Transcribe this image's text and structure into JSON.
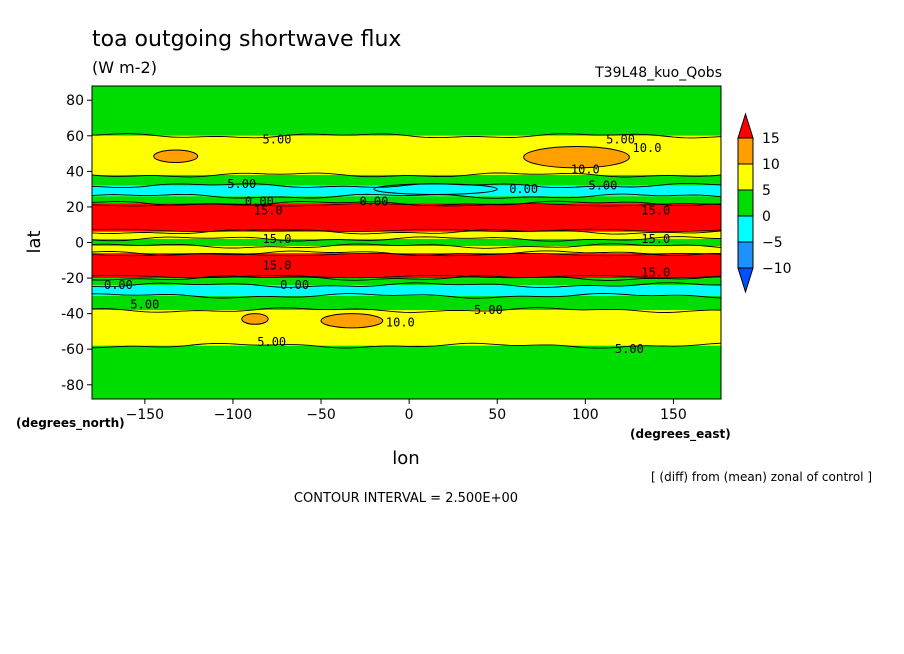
{
  "chart_data": {
    "type": "heatmap",
    "title": "toa outgoing shortwave flux",
    "units": "(W m-2)",
    "experiment": "T39L48_kuo_Qobs",
    "xlabel": "lon",
    "ylabel": "lat",
    "xunit": "(degrees_east)",
    "yunit": "(degrees_north)",
    "xlim": [
      -180,
      177
    ],
    "ylim": [
      -88,
      88
    ],
    "xticks": [
      -150,
      -100,
      -50,
      0,
      50,
      100,
      150
    ],
    "yticks": [
      -80,
      -60,
      -40,
      -20,
      0,
      20,
      40,
      60,
      80
    ],
    "note": "[ (diff) from (mean) zonal of control ]",
    "contour_interval": "CONTOUR INTERVAL = 2.500E+00",
    "colorbar": {
      "levels": [
        15,
        10,
        5,
        0,
        -5,
        -10
      ],
      "colors": [
        "#ff0000",
        "#ffa000",
        "#ffff00",
        "#00dd00",
        "#00ffff",
        "#1e90ff",
        "#0050ff"
      ]
    },
    "bands": [
      {
        "lat": [
          60,
          88
        ],
        "value": 2.5
      },
      {
        "lat": [
          38,
          60
        ],
        "value": 7.5
      },
      {
        "lat": [
          32,
          38
        ],
        "value": 2.5
      },
      {
        "lat": [
          26,
          32
        ],
        "value": -2.5
      },
      {
        "lat": [
          22,
          26
        ],
        "value": 2.5
      },
      {
        "lat": [
          6,
          22
        ],
        "value": 17.5
      },
      {
        "lat": [
          2,
          6
        ],
        "value": 7.5
      },
      {
        "lat": [
          -2,
          2
        ],
        "value": 2.5
      },
      {
        "lat": [
          -6,
          -2
        ],
        "value": 7.5
      },
      {
        "lat": [
          -20,
          -6
        ],
        "value": 17.5
      },
      {
        "lat": [
          -24,
          -20
        ],
        "value": 2.5
      },
      {
        "lat": [
          -30,
          -24
        ],
        "value": -2.5
      },
      {
        "lat": [
          -38,
          -30
        ],
        "value": 2.5
      },
      {
        "lat": [
          -58,
          -38
        ],
        "value": 7.5
      },
      {
        "lat": [
          -88,
          -58
        ],
        "value": 2.5
      }
    ],
    "patches": [
      {
        "lon": [
          65,
          125
        ],
        "lat": [
          42,
          54
        ],
        "value": 12.5
      },
      {
        "lon": [
          -145,
          -120
        ],
        "lat": [
          45,
          52
        ],
        "value": 12.5
      },
      {
        "lon": [
          -50,
          -15
        ],
        "lat": [
          -48,
          -40
        ],
        "value": 12.5
      },
      {
        "lon": [
          -95,
          -80
        ],
        "lat": [
          -46,
          -40
        ],
        "value": 12.5
      },
      {
        "lon": [
          -20,
          50
        ],
        "lat": [
          27,
          33
        ],
        "value": -2.5
      }
    ],
    "contour_labels": [
      {
        "text": "5.00",
        "lon": -75,
        "lat": 58
      },
      {
        "text": "5.00",
        "lon": 120,
        "lat": 58
      },
      {
        "text": "10.0",
        "lon": 135,
        "lat": 53
      },
      {
        "text": "10.0",
        "lon": 100,
        "lat": 41
      },
      {
        "text": "5.00",
        "lon": 110,
        "lat": 32
      },
      {
        "text": "5.00",
        "lon": -95,
        "lat": 33
      },
      {
        "text": "0.00",
        "lon": 65,
        "lat": 30
      },
      {
        "text": "0.00",
        "lon": -20,
        "lat": 23
      },
      {
        "text": "0.00",
        "lon": -85,
        "lat": 23
      },
      {
        "text": "15.0",
        "lon": -80,
        "lat": 18
      },
      {
        "text": "15.0",
        "lon": 140,
        "lat": 18
      },
      {
        "text": "15.0",
        "lon": -75,
        "lat": 2
      },
      {
        "text": "15.0",
        "lon": 140,
        "lat": 2
      },
      {
        "text": "15.0",
        "lon": -75,
        "lat": -13
      },
      {
        "text": "15.0",
        "lon": 140,
        "lat": -17
      },
      {
        "text": "0.00",
        "lon": -165,
        "lat": -24
      },
      {
        "text": "0.00",
        "lon": -65,
        "lat": -24
      },
      {
        "text": "5.00",
        "lon": -150,
        "lat": -35
      },
      {
        "text": "5.00",
        "lon": 45,
        "lat": -38
      },
      {
        "text": "10.0",
        "lon": -5,
        "lat": -45
      },
      {
        "text": "5.00",
        "lon": -78,
        "lat": -56
      },
      {
        "text": "5.00",
        "lon": 125,
        "lat": -60
      }
    ]
  }
}
